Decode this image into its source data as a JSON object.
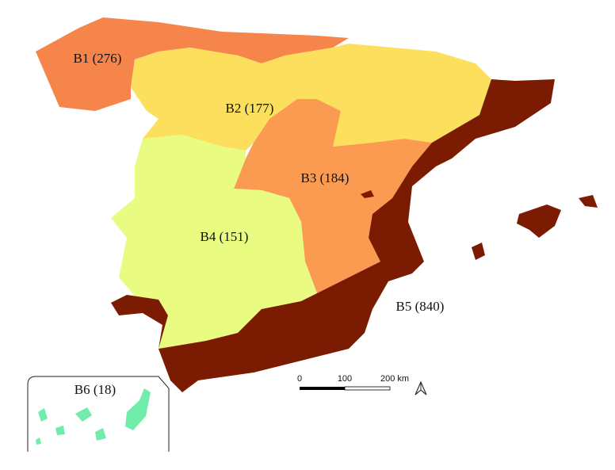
{
  "regions": [
    {
      "label": "B1 (276)",
      "color": "#f5854a"
    },
    {
      "label": "B2 (177)",
      "color": "#fddf5e"
    },
    {
      "label": "B3 (184)",
      "color": "#fb9b52"
    },
    {
      "label": "B4 (151)",
      "color": "#eafb82"
    },
    {
      "label": "B5 (840)",
      "color": "#7b1c02"
    },
    {
      "label": "B6 (18)",
      "color": "#72ecaa"
    }
  ],
  "scale_bar": {
    "ticks": [
      "0",
      "100",
      "200 km"
    ]
  }
}
